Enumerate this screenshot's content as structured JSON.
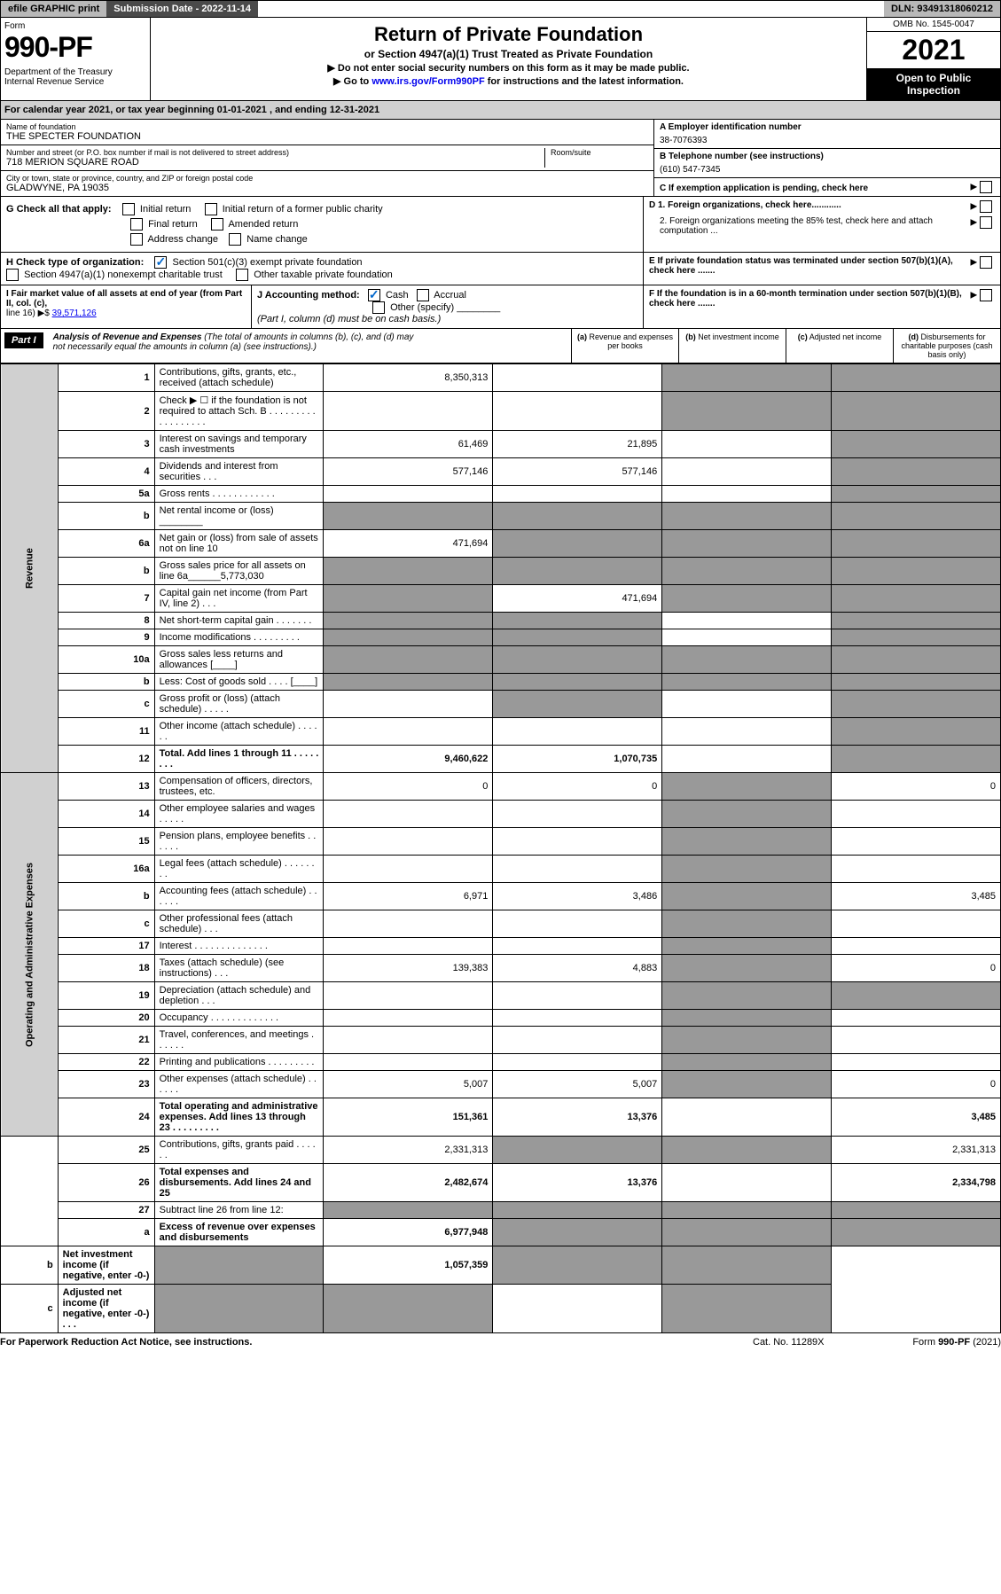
{
  "top": {
    "efile": "efile GRAPHIC print",
    "submission": "Submission Date - 2022-11-14",
    "dln": "DLN: 93491318060212"
  },
  "header": {
    "form_label": "Form",
    "form_num": "990-PF",
    "dept": "Department of the Treasury\nInternal Revenue Service",
    "title": "Return of Private Foundation",
    "subtitle": "or Section 4947(a)(1) Trust Treated as Private Foundation",
    "inst1": "▶ Do not enter social security numbers on this form as it may be made public.",
    "inst2": "▶ Go to www.irs.gov/Form990PF for instructions and the latest information.",
    "omb": "OMB No. 1545-0047",
    "year": "2021",
    "open": "Open to Public Inspection"
  },
  "cal_year": "For calendar year 2021, or tax year beginning 01-01-2021                          , and ending 12-31-2021",
  "info": {
    "name_label": "Name of foundation",
    "name": "THE SPECTER FOUNDATION",
    "addr_label": "Number and street (or P.O. box number if mail is not delivered to street address)",
    "addr": "718 MERION SQUARE ROAD",
    "room_label": "Room/suite",
    "city_label": "City or town, state or province, country, and ZIP or foreign postal code",
    "city": "GLADWYNE, PA  19035",
    "ein_label": "A Employer identification number",
    "ein": "38-7076393",
    "phone_label": "B Telephone number (see instructions)",
    "phone": "(610) 547-7345",
    "c_label": "C If exemption application is pending, check here",
    "d1": "D 1. Foreign organizations, check here............",
    "d2": "2. Foreign organizations meeting the 85% test, check here and attach computation ...",
    "e_label": "E  If private foundation status was terminated under section 507(b)(1)(A), check here .......",
    "f_label": "F  If the foundation is in a 60-month termination under section 507(b)(1)(B), check here ......."
  },
  "g": {
    "label": "G Check all that apply:",
    "opts": [
      "Initial return",
      "Initial return of a former public charity",
      "Final return",
      "Amended return",
      "Address change",
      "Name change"
    ]
  },
  "h": {
    "label": "H Check type of organization:",
    "opt1": "Section 501(c)(3) exempt private foundation",
    "opt2": "Section 4947(a)(1) nonexempt charitable trust",
    "opt3": "Other taxable private foundation"
  },
  "i": {
    "label": "I Fair market value of all assets at end of year (from Part II, col. (c),",
    "line": "line 16) ▶$ ",
    "value": "39,571,126"
  },
  "j": {
    "label": "J Accounting method:",
    "cash": "Cash",
    "accrual": "Accrual",
    "other": "Other (specify)",
    "note": "(Part I, column (d) must be on cash basis.)"
  },
  "part1": {
    "label": "Part I",
    "title": "Analysis of Revenue and Expenses",
    "note": "(The total of amounts in columns (b), (c), and (d) may not necessarily equal the amounts in column (a) (see instructions).)",
    "cols": [
      {
        "l": "(a)",
        "t": "Revenue and expenses per books"
      },
      {
        "l": "(b)",
        "t": "Net investment income"
      },
      {
        "l": "(c)",
        "t": "Adjusted net income"
      },
      {
        "l": "(d)",
        "t": "Disbursements for charitable purposes (cash basis only)"
      }
    ]
  },
  "rows": [
    {
      "n": "1",
      "d": "Contributions, gifts, grants, etc., received (attach schedule)",
      "a": "8,350,313",
      "b": "",
      "c": "g",
      "dd": "g"
    },
    {
      "n": "2",
      "d": "Check ▶ ☐ if the foundation is not required to attach Sch. B   . . . . . . . . . . . . . . . . . .",
      "a": "",
      "b": "",
      "c": "g",
      "dd": "g"
    },
    {
      "n": "3",
      "d": "Interest on savings and temporary cash investments",
      "a": "61,469",
      "b": "21,895",
      "c": "",
      "dd": "g"
    },
    {
      "n": "4",
      "d": "Dividends and interest from securities   .  .  .",
      "a": "577,146",
      "b": "577,146",
      "c": "",
      "dd": "g"
    },
    {
      "n": "5a",
      "d": "Gross rents   .  .  .  .  .  .  .  .  .  .  .  .",
      "a": "",
      "b": "",
      "c": "",
      "dd": "g"
    },
    {
      "n": "b",
      "d": "Net rental income or (loss)  ________",
      "a": "g",
      "b": "g",
      "c": "g",
      "dd": "g"
    },
    {
      "n": "6a",
      "d": "Net gain or (loss) from sale of assets not on line 10",
      "a": "471,694",
      "b": "g",
      "c": "g",
      "dd": "g"
    },
    {
      "n": "b",
      "d": "Gross sales price for all assets on line 6a______5,773,030",
      "a": "g",
      "b": "g",
      "c": "g",
      "dd": "g"
    },
    {
      "n": "7",
      "d": "Capital gain net income (from Part IV, line 2)   .  .  .",
      "a": "g",
      "b": "471,694",
      "c": "g",
      "dd": "g"
    },
    {
      "n": "8",
      "d": "Net short-term capital gain   .  .  .  .  .  .  .",
      "a": "g",
      "b": "g",
      "c": "",
      "dd": "g"
    },
    {
      "n": "9",
      "d": "Income modifications  .  .  .  .  .  .  .  .  .",
      "a": "g",
      "b": "g",
      "c": "",
      "dd": "g"
    },
    {
      "n": "10a",
      "d": "Gross sales less returns and allowances  [____]",
      "a": "g",
      "b": "g",
      "c": "g",
      "dd": "g"
    },
    {
      "n": "b",
      "d": "Less: Cost of goods sold   .  .  .  .  [____]",
      "a": "g",
      "b": "g",
      "c": "g",
      "dd": "g"
    },
    {
      "n": "c",
      "d": "Gross profit or (loss) (attach schedule)   .  .  .  .  .",
      "a": "",
      "b": "g",
      "c": "",
      "dd": "g"
    },
    {
      "n": "11",
      "d": "Other income (attach schedule)   .  .  .  .  .  .",
      "a": "",
      "b": "",
      "c": "",
      "dd": "g"
    },
    {
      "n": "12",
      "d": "Total. Add lines 1 through 11   .  .  .  .  .  .  .  .",
      "a": "9,460,622",
      "b": "1,070,735",
      "c": "",
      "dd": "g",
      "bold": 1
    },
    {
      "n": "13",
      "d": "Compensation of officers, directors, trustees, etc.",
      "a": "0",
      "b": "0",
      "c": "g",
      "dd": "0"
    },
    {
      "n": "14",
      "d": "Other employee salaries and wages   .  .  .  .  .",
      "a": "",
      "b": "",
      "c": "g",
      "dd": ""
    },
    {
      "n": "15",
      "d": "Pension plans, employee benefits  .  .  .  .  .  .",
      "a": "",
      "b": "",
      "c": "g",
      "dd": ""
    },
    {
      "n": "16a",
      "d": "Legal fees (attach schedule)  .  .  .  .  .  .  .  .",
      "a": "",
      "b": "",
      "c": "g",
      "dd": ""
    },
    {
      "n": "b",
      "d": "Accounting fees (attach schedule)  .  .  .  .  .  .",
      "a": "6,971",
      "b": "3,486",
      "c": "g",
      "dd": "3,485"
    },
    {
      "n": "c",
      "d": "Other professional fees (attach schedule)   .  .  .",
      "a": "",
      "b": "",
      "c": "g",
      "dd": ""
    },
    {
      "n": "17",
      "d": "Interest  .  .  .  .  .  .  .  .  .  .  .  .  .  .",
      "a": "",
      "b": "",
      "c": "g",
      "dd": ""
    },
    {
      "n": "18",
      "d": "Taxes (attach schedule) (see instructions)   .  .  .",
      "a": "139,383",
      "b": "4,883",
      "c": "g",
      "dd": "0"
    },
    {
      "n": "19",
      "d": "Depreciation (attach schedule) and depletion   .  .  .",
      "a": "",
      "b": "",
      "c": "g",
      "dd": "g"
    },
    {
      "n": "20",
      "d": "Occupancy  .  .  .  .  .  .  .  .  .  .  .  .  .",
      "a": "",
      "b": "",
      "c": "g",
      "dd": ""
    },
    {
      "n": "21",
      "d": "Travel, conferences, and meetings  .  .  .  .  .  .",
      "a": "",
      "b": "",
      "c": "g",
      "dd": ""
    },
    {
      "n": "22",
      "d": "Printing and publications  .  .  .  .  .  .  .  .  .",
      "a": "",
      "b": "",
      "c": "g",
      "dd": ""
    },
    {
      "n": "23",
      "d": "Other expenses (attach schedule)  .  .  .  .  .  .",
      "a": "5,007",
      "b": "5,007",
      "c": "g",
      "dd": "0"
    },
    {
      "n": "24",
      "d": "Total operating and administrative expenses. Add lines 13 through 23   .  .  .  .  .  .  .  .  .",
      "a": "151,361",
      "b": "13,376",
      "c": "",
      "dd": "3,485",
      "bold": 1
    },
    {
      "n": "25",
      "d": "Contributions, gifts, grants paid   .  .  .  .  .  .",
      "a": "2,331,313",
      "b": "g",
      "c": "g",
      "dd": "2,331,313"
    },
    {
      "n": "26",
      "d": "Total expenses and disbursements. Add lines 24 and 25",
      "a": "2,482,674",
      "b": "13,376",
      "c": "",
      "dd": "2,334,798",
      "bold": 1
    },
    {
      "n": "27",
      "d": "Subtract line 26 from line 12:",
      "a": "g",
      "b": "g",
      "c": "g",
      "dd": "g"
    },
    {
      "n": "a",
      "d": "Excess of revenue over expenses and disbursements",
      "a": "6,977,948",
      "b": "g",
      "c": "g",
      "dd": "g",
      "bold": 1
    },
    {
      "n": "b",
      "d": "Net investment income (if negative, enter -0-)",
      "a": "g",
      "b": "1,057,359",
      "c": "g",
      "dd": "g",
      "bold": 1
    },
    {
      "n": "c",
      "d": "Adjusted net income (if negative, enter -0-)   .  .  .",
      "a": "g",
      "b": "g",
      "c": "",
      "dd": "g",
      "bold": 1
    }
  ],
  "side_labels": {
    "rev": "Revenue",
    "exp": "Operating and Administrative Expenses"
  },
  "footer": {
    "l": "For Paperwork Reduction Act Notice, see instructions.",
    "m": "Cat. No. 11289X",
    "r": "Form 990-PF (2021)"
  },
  "colors": {
    "gray_light": "#d0d0d0",
    "gray_med": "#b8b8b8",
    "gray_dark": "#4a4a4a",
    "gray_cell": "#999999",
    "link": "#0000ee"
  }
}
